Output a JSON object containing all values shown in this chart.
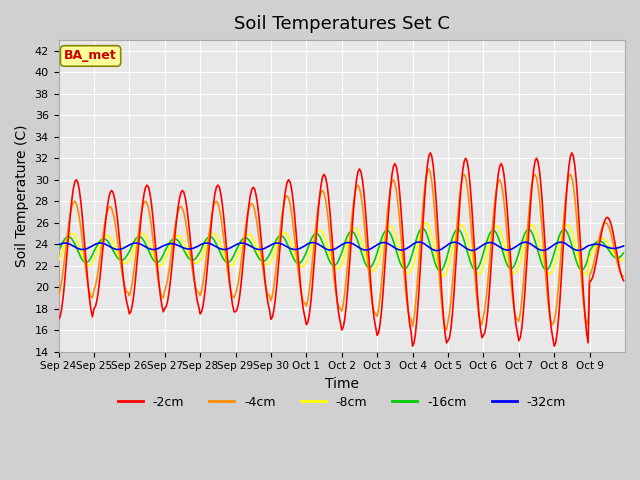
{
  "title": "Soil Temperatures Set C",
  "xlabel": "Time",
  "ylabel": "Soil Temperature (C)",
  "ylim": [
    14,
    43
  ],
  "yticks": [
    14,
    16,
    18,
    20,
    22,
    24,
    26,
    28,
    30,
    32,
    34,
    36,
    38,
    40,
    42
  ],
  "x_tick_labels": [
    "Sep 24",
    "Sep 25",
    "Sep 26",
    "Sep 27",
    "Sep 28",
    "Sep 29",
    "Sep 30",
    "Oct 1",
    "Oct 2",
    "Oct 3",
    "Oct 4",
    "Oct 5",
    "Oct 6",
    "Oct 7",
    "Oct 8",
    "Oct 9"
  ],
  "legend_labels": [
    "-2cm",
    "-4cm",
    "-8cm",
    "-16cm",
    "-32cm"
  ],
  "legend_colors": [
    "#ff0000",
    "#ff8c00",
    "#ffff00",
    "#00cc00",
    "#0000ff"
  ],
  "annotation_text": "BA_met",
  "annotation_color": "#cc0000",
  "annotation_bg": "#ffff99",
  "plot_bg_color": "#e8e8e8",
  "fig_bg_color": "#d0d0d0",
  "line_width": 1.2,
  "days": 16,
  "pts_per_day": 24,
  "base_temp": 23.5,
  "phase_2cm": -1.5708,
  "phase_4cm": -1.2708,
  "phase_8cm": -0.7708,
  "phase_16cm": -0.1708,
  "phase_32cm": 0.4292,
  "amplitude_2cm": [
    6.5,
    5.5,
    6.0,
    5.5,
    6.0,
    5.8,
    6.5,
    7.0,
    7.5,
    8.0,
    9.0,
    8.5,
    8.0,
    8.5,
    9.0,
    3.0
  ],
  "amplitude_4cm": [
    4.5,
    4.0,
    4.5,
    4.0,
    4.5,
    4.3,
    5.0,
    5.5,
    6.0,
    6.5,
    7.5,
    7.0,
    6.5,
    7.0,
    7.0,
    2.5
  ],
  "amplitude_8cm": [
    1.5,
    1.3,
    1.5,
    1.3,
    1.5,
    1.4,
    1.6,
    1.8,
    2.0,
    2.2,
    2.5,
    2.3,
    2.2,
    2.3,
    2.3,
    1.0
  ],
  "amplitude_16cm": [
    1.2,
    1.0,
    1.2,
    1.0,
    1.2,
    1.1,
    1.3,
    1.5,
    1.7,
    1.8,
    2.0,
    1.9,
    1.8,
    1.9,
    1.9,
    0.8
  ],
  "amplitude_32cm": [
    0.3,
    0.3,
    0.3,
    0.25,
    0.3,
    0.3,
    0.3,
    0.35,
    0.35,
    0.35,
    0.4,
    0.38,
    0.35,
    0.38,
    0.38,
    0.2
  ]
}
